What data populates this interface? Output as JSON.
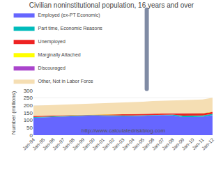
{
  "chart_data": {
    "type": "area",
    "stacked": true,
    "title": "Civilian noninstitutional population, 16 years and over",
    "ylabel": "Number (millions)",
    "annotations": [
      "http://www.calculatedriskblog.com"
    ],
    "categories": [
      "Jan-94",
      "Jan-95",
      "Jan-96",
      "Jan-97",
      "Jan-98",
      "Jan-99",
      "Jan-00",
      "Jan-01",
      "Jan-02",
      "Jan-03",
      "Jan-04",
      "Jan-05",
      "Jan-06",
      "Jan-07",
      "Jan-08",
      "Jan-09",
      "Jan-10",
      "Jan-11",
      "Jan-12"
    ],
    "series": [
      {
        "name": "Employed (ex-PT Economic)",
        "color": "#6666FF",
        "values": [
          117,
          119,
          121,
          124,
          127,
          130,
          132,
          130,
          127,
          127,
          128,
          130,
          133,
          135,
          132,
          122,
          122,
          124,
          135
        ]
      },
      {
        "name": "Part time, Economic Reasons",
        "color": "#00BBBB",
        "values": [
          4.5,
          4.2,
          4.0,
          3.8,
          3.5,
          3.3,
          3.2,
          3.8,
          4.8,
          5.0,
          4.7,
          4.5,
          4.2,
          4.4,
          6.0,
          9.0,
          9.2,
          8.8,
          8.2
        ]
      },
      {
        "name": "Unemployed",
        "color": "#EE2222",
        "values": [
          7.5,
          7.2,
          6.8,
          6.5,
          5.9,
          5.6,
          5.4,
          6.8,
          8.2,
          8.9,
          8.4,
          7.8,
          7.2,
          7.2,
          9.0,
          14.5,
          15.0,
          14.0,
          13.0
        ]
      },
      {
        "name": "Marginally Attached",
        "color": "#FFFF00",
        "values": [
          1.6,
          1.6,
          1.5,
          1.4,
          1.3,
          1.2,
          1.1,
          1.3,
          1.6,
          1.7,
          1.6,
          1.5,
          1.4,
          1.5,
          1.9,
          2.5,
          2.6,
          2.5,
          2.4
        ]
      },
      {
        "name": "Discouraged",
        "color": "#AA44CC",
        "values": [
          0.9,
          0.8,
          0.7,
          0.6,
          0.5,
          0.4,
          0.4,
          0.5,
          0.6,
          0.7,
          0.6,
          0.6,
          0.5,
          0.5,
          0.7,
          1.0,
          1.2,
          1.1,
          1.0
        ]
      },
      {
        "name": "Other, Not in Labor Force",
        "color": "#F5DEB3",
        "values": [
          66,
          67,
          68,
          69,
          70,
          71,
          72,
          74,
          76,
          78,
          80,
          81,
          83,
          84,
          85,
          87,
          88,
          90,
          92
        ]
      }
    ],
    "ylim": [
      0,
      300
    ],
    "yticks": [
      0,
      50,
      100,
      150,
      200,
      250,
      300
    ],
    "grid": true
  }
}
